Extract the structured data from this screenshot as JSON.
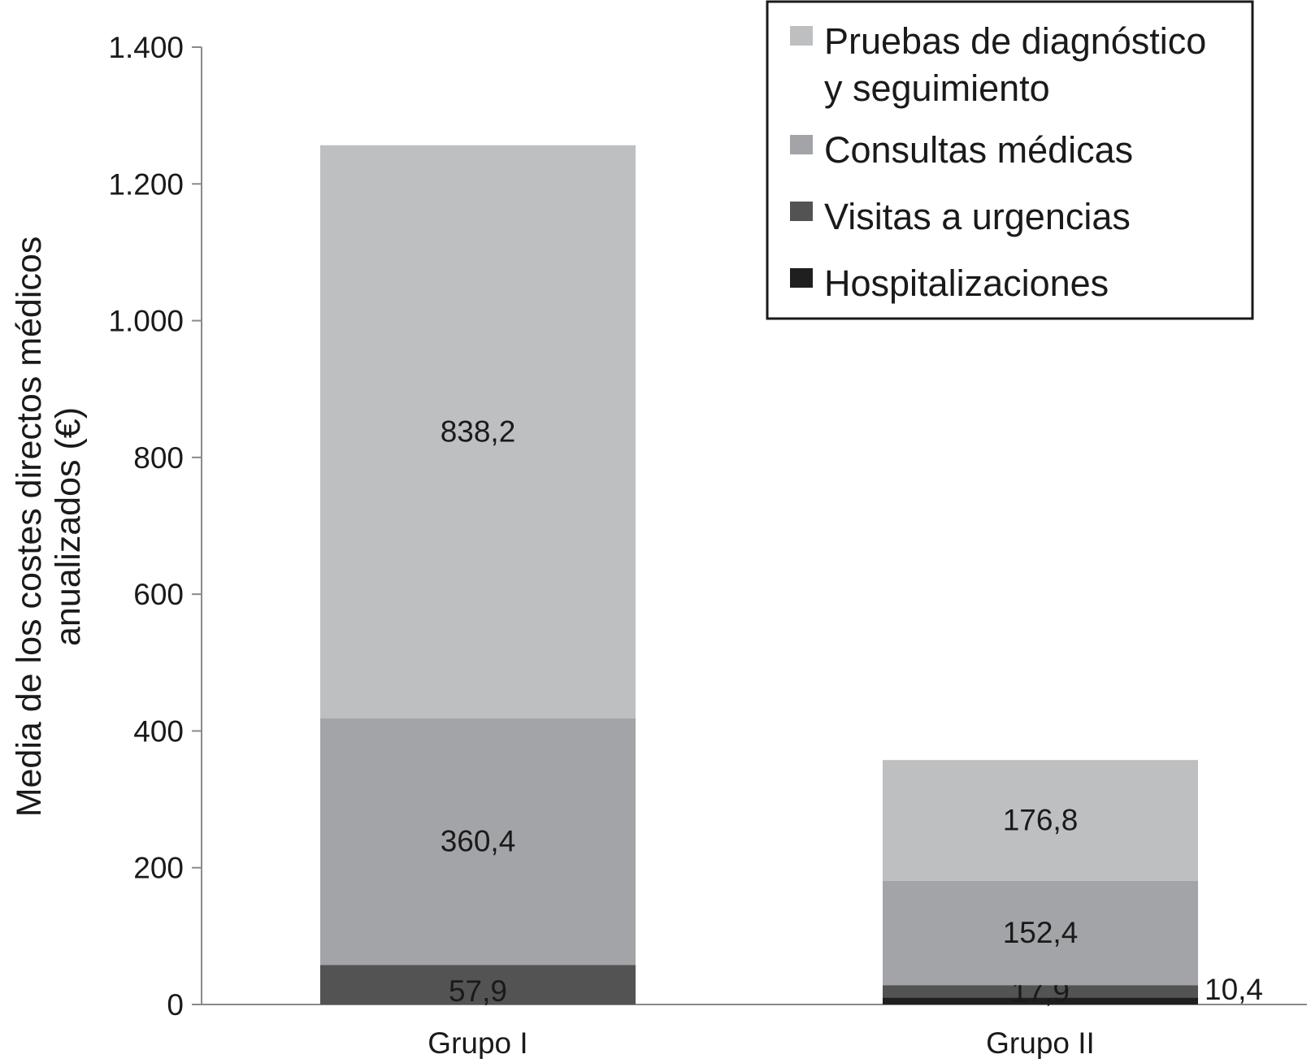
{
  "chart_data": {
    "type": "bar",
    "stacked": true,
    "categories": [
      "Grupo I",
      "Grupo II"
    ],
    "series": [
      {
        "name": "Hospitalizaciones",
        "values": [
          0,
          10.4
        ],
        "labels": [
          "",
          "10,4"
        ],
        "color": "#1f1f1f"
      },
      {
        "name": "Visitas a urgencias",
        "values": [
          57.9,
          17.9
        ],
        "labels": [
          "57,9",
          "17,9"
        ],
        "color": "#535353"
      },
      {
        "name": "Consultas médicas",
        "values": [
          360.4,
          152.4
        ],
        "labels": [
          "360,4",
          "152,4"
        ],
        "color": "#a3a4a8"
      },
      {
        "name": "Pruebas de diagnóstico y seguimiento",
        "values": [
          838.2,
          176.8
        ],
        "labels": [
          "838,2",
          "176,8"
        ],
        "color": "#bebfc1"
      }
    ],
    "legend_order": [
      3,
      2,
      1,
      0
    ],
    "legend_placement": "top-right",
    "legend_lines": [
      [
        "Pruebas de diagnóstico",
        "y seguimiento"
      ],
      [
        "Consultas médicas"
      ],
      [
        "Visitas a urgencias"
      ],
      [
        "Hospitalizaciones"
      ]
    ],
    "ylabel_lines": [
      "Media de los costes directos médicos",
      "anualizados (€)"
    ],
    "xlabel": "",
    "title": "",
    "ylim": [
      0,
      1400
    ],
    "yticks": [
      0,
      200,
      400,
      600,
      800,
      1000,
      1200,
      1400
    ],
    "ytick_labels": [
      "0",
      "200",
      "400",
      "600",
      "800",
      "1.000",
      "1.200",
      "1.400"
    ],
    "grid": false
  }
}
